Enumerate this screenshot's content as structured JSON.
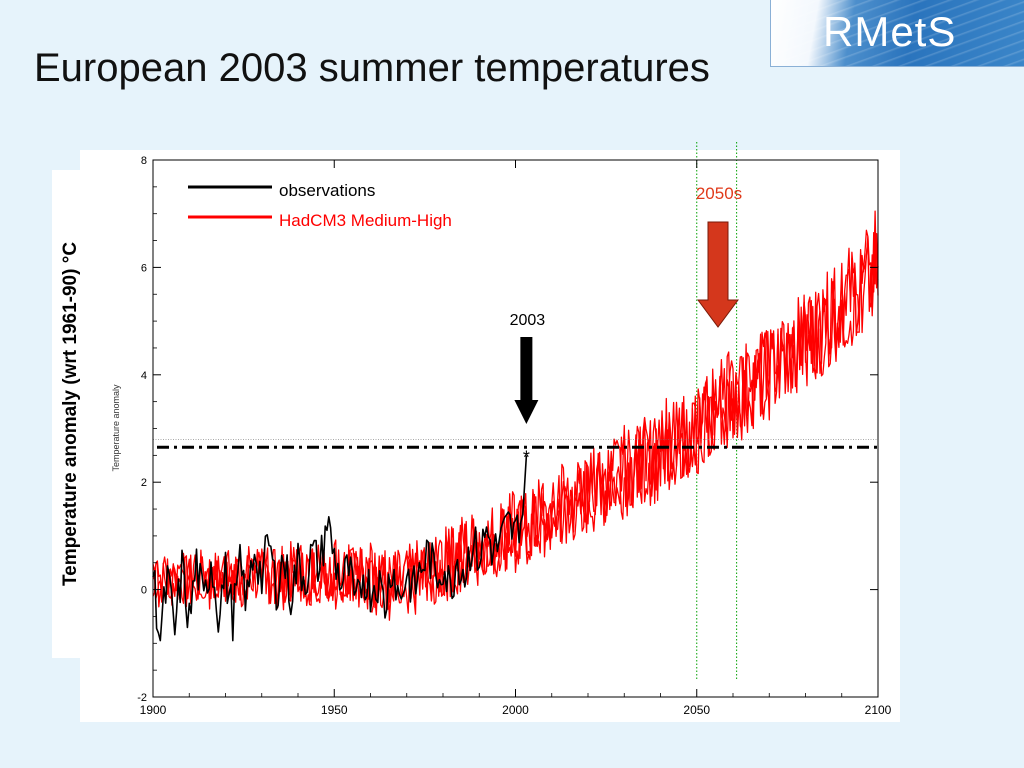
{
  "slide": {
    "title": "European 2003 summer temperatures",
    "logo_text": "RMetS",
    "y_axis_label": "Temperature anomaly (wrt 1961-90)  °C"
  },
  "chart_data": {
    "type": "line",
    "inner_ylabel": "Temperature anomaly",
    "xlim": [
      1900,
      2100
    ],
    "ylim": [
      -2,
      8
    ],
    "x_ticks": [
      1900,
      1950,
      2000,
      2050,
      2100
    ],
    "y_ticks": [
      -2,
      0,
      2,
      4,
      6,
      8
    ],
    "grid": false,
    "legend": {
      "placement": "top-left",
      "entries": [
        {
          "label": "observations",
          "color": "#000000"
        },
        {
          "label": "HadCM3 Medium-High",
          "color": "#ff0000"
        }
      ]
    },
    "series": [
      {
        "name": "observations",
        "color": "#000000",
        "x": [
          1900,
          1902,
          1904,
          1906,
          1908,
          1910,
          1912,
          1914,
          1916,
          1918,
          1920,
          1922,
          1924,
          1926,
          1928,
          1930,
          1932,
          1934,
          1936,
          1938,
          1940,
          1942,
          1944,
          1946,
          1948,
          1950,
          1952,
          1954,
          1956,
          1958,
          1960,
          1962,
          1964,
          1966,
          1968,
          1970,
          1972,
          1974,
          1976,
          1978,
          1980,
          1982,
          1984,
          1986,
          1988,
          1990,
          1992,
          1994,
          1996,
          1998,
          2000,
          2001,
          2002,
          2003
        ],
        "values": [
          0.3,
          -0.9,
          0.2,
          -0.8,
          0.4,
          -0.6,
          0.5,
          -0.3,
          0.6,
          -0.4,
          0.3,
          -0.5,
          0.4,
          -0.2,
          0.8,
          0.2,
          0.9,
          0.0,
          0.6,
          -0.1,
          0.5,
          0.2,
          0.7,
          0.4,
          1.3,
          0.6,
          0.1,
          0.4,
          -0.4,
          0.3,
          0.0,
          0.2,
          -0.3,
          0.5,
          -0.2,
          0.3,
          0.0,
          0.4,
          0.7,
          0.2,
          0.5,
          0.0,
          0.6,
          0.3,
          0.9,
          0.6,
          1.1,
          0.7,
          0.9,
          1.2,
          1.0,
          1.3,
          1.4,
          2.5
        ]
      },
      {
        "name": "HadCM3 Medium-High",
        "color": "#ff0000",
        "x": [
          1900,
          1905,
          1910,
          1915,
          1920,
          1925,
          1930,
          1935,
          1940,
          1945,
          1950,
          1955,
          1960,
          1965,
          1970,
          1975,
          1980,
          1985,
          1990,
          1995,
          2000,
          2005,
          2010,
          2015,
          2020,
          2025,
          2030,
          2035,
          2040,
          2045,
          2050,
          2055,
          2060,
          2065,
          2070,
          2075,
          2080,
          2085,
          2090,
          2095,
          2100
        ],
        "values": [
          0.2,
          0.1,
          0.2,
          0.3,
          0.2,
          0.3,
          0.2,
          0.3,
          0.4,
          0.3,
          0.3,
          0.4,
          0.1,
          0.1,
          0.2,
          0.4,
          0.3,
          0.8,
          0.9,
          1.0,
          1.0,
          1.1,
          1.3,
          1.5,
          1.7,
          1.9,
          2.1,
          2.4,
          2.6,
          2.7,
          3.0,
          3.3,
          3.5,
          3.8,
          4.1,
          4.4,
          4.7,
          4.9,
          5.4,
          5.7,
          6.0
        ]
      },
      {
        "name": "",
        "color": "#ff0000",
        "x": [
          1900,
          1905,
          1910,
          1915,
          1920,
          1925,
          1930,
          1935,
          1940,
          1945,
          1950,
          1955,
          1960,
          1965,
          1970,
          1975,
          1980,
          1985,
          1990,
          1995,
          2000,
          2005,
          2010,
          2015,
          2020,
          2025,
          2030,
          2035,
          2040,
          2045,
          2050,
          2055,
          2060,
          2065,
          2070,
          2075,
          2080,
          2085,
          2090,
          2095,
          2100
        ],
        "values": [
          0.1,
          0.2,
          0.1,
          0.2,
          0.3,
          0.1,
          0.3,
          0.2,
          0.2,
          0.4,
          0.2,
          0.3,
          0.2,
          0.0,
          0.3,
          0.3,
          0.4,
          0.6,
          0.7,
          0.9,
          1.2,
          1.2,
          1.4,
          1.6,
          1.8,
          2.0,
          2.3,
          2.3,
          2.4,
          2.8,
          3.1,
          3.2,
          3.6,
          3.9,
          4.0,
          4.3,
          4.6,
          5.0,
          5.2,
          5.5,
          5.8
        ]
      },
      {
        "name": "",
        "color": "#ff0000",
        "x": [
          1900,
          1905,
          1910,
          1915,
          1920,
          1925,
          1930,
          1935,
          1940,
          1945,
          1950,
          1955,
          1960,
          1965,
          1970,
          1975,
          1980,
          1985,
          1990,
          1995,
          2000,
          2005,
          2010,
          2015,
          2020,
          2025,
          2030,
          2035,
          2040,
          2045,
          2050,
          2055,
          2060,
          2065,
          2070,
          2075,
          2080,
          2085,
          2090,
          2095,
          2100
        ],
        "values": [
          0.3,
          0.2,
          0.3,
          0.1,
          0.2,
          0.3,
          0.3,
          0.1,
          0.3,
          0.2,
          0.4,
          0.2,
          0.3,
          0.2,
          0.1,
          0.2,
          0.5,
          0.7,
          0.8,
          0.8,
          0.9,
          1.3,
          1.5,
          1.7,
          1.8,
          2.1,
          2.2,
          2.5,
          2.7,
          2.9,
          2.9,
          3.4,
          3.7,
          3.7,
          4.2,
          4.5,
          4.5,
          5.1,
          5.3,
          5.6,
          6.2
        ]
      }
    ],
    "reference_line": {
      "y": 2.65,
      "style": "dash-dot",
      "color": "#000000"
    },
    "marker": {
      "x": 2003,
      "y": 2.5,
      "symbol": "*"
    },
    "period_lines": {
      "x": [
        2050,
        2061
      ],
      "color": "#00a000"
    },
    "annotations": [
      {
        "text": "2003",
        "x": 2003,
        "color": "#000000"
      },
      {
        "text": "2050s",
        "x": 2055,
        "color": "#ff0000"
      }
    ]
  }
}
